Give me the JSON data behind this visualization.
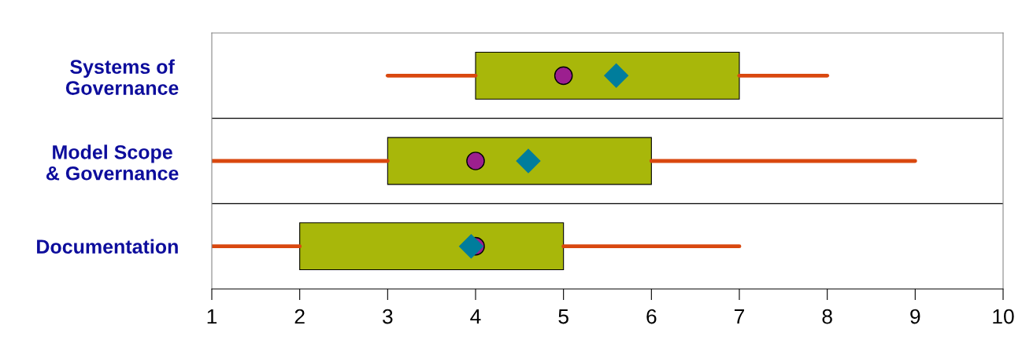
{
  "chart_data": {
    "type": "box",
    "orientation": "horizontal",
    "categories": [
      "Systems of\nGovernance",
      "Model Scope\n& Governance",
      "Documentation"
    ],
    "boxes": [
      {
        "low": 3,
        "q1": 4,
        "median": 5,
        "q3": 7,
        "high": 8,
        "mean": 5.6
      },
      {
        "low": 1,
        "q1": 3,
        "median": 4,
        "q3": 6,
        "high": 9,
        "mean": 4.6
      },
      {
        "low": 1,
        "q1": 2,
        "median": 4,
        "q3": 5,
        "high": 7,
        "mean": 3.95
      }
    ],
    "color": "#a8b70a",
    "xlim": [
      1,
      10
    ],
    "xticks": [
      1,
      2,
      3,
      4,
      5,
      6,
      7,
      8,
      9,
      10
    ],
    "grid": "y",
    "legend": false
  }
}
